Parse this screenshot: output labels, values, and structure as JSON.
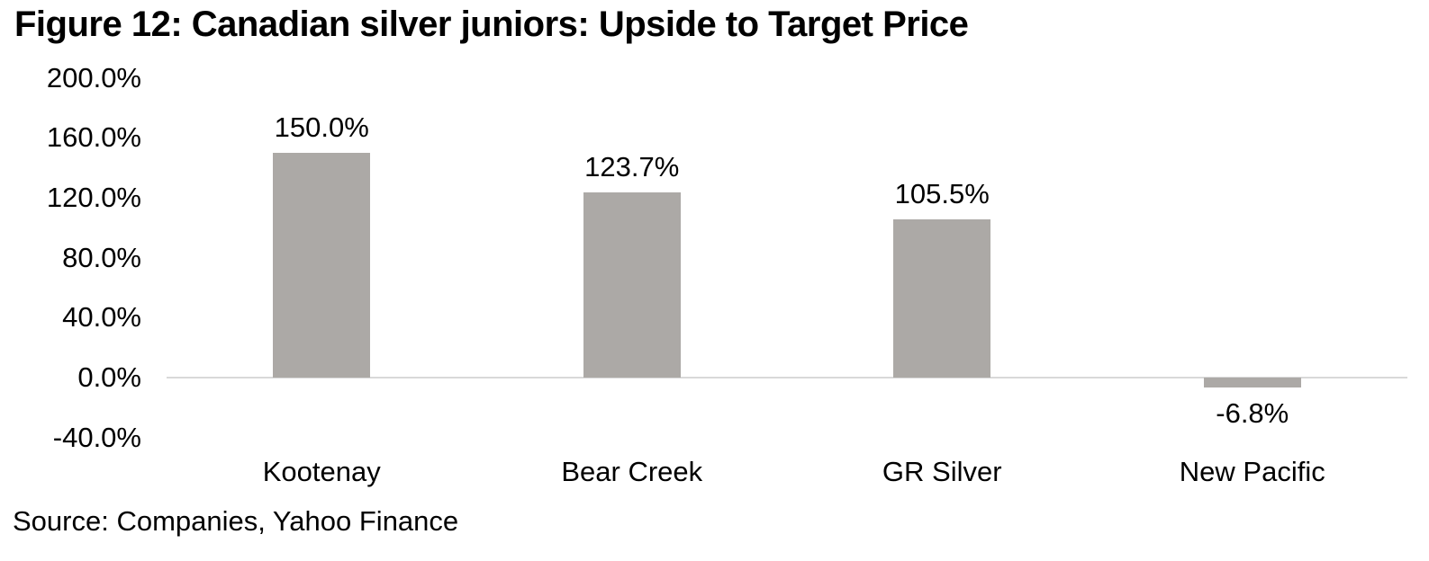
{
  "source": "Source: Companies, Yahoo Finance",
  "chart_data": {
    "type": "bar",
    "title": "Figure 12: Canadian silver juniors: Upside to Target Price",
    "categories": [
      "Kootenay",
      "Bear Creek",
      "GR Silver",
      "New Pacific"
    ],
    "values": [
      150.0,
      123.7,
      105.5,
      -6.8
    ],
    "data_labels": [
      "150.0%",
      "123.7%",
      "105.5%",
      "-6.8%"
    ],
    "xlabel": "",
    "ylabel": "",
    "ylim": [
      -40,
      200
    ],
    "y_tick_labels": [
      "200.0%",
      "160.0%",
      "120.0%",
      "80.0%",
      "40.0%",
      "0.0%",
      "-40.0%"
    ],
    "y_tick_values": [
      200,
      160,
      120,
      80,
      40,
      0,
      -40
    ],
    "grid": false,
    "legend_position": "none",
    "bar_color": "#ACA9A6",
    "axis_line_color": "#D9D9D9",
    "text_color": "#000000",
    "background_color": "#FFFFFF"
  }
}
